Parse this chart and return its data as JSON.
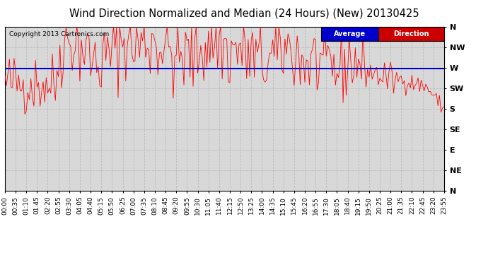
{
  "title": "Wind Direction Normalized and Median (24 Hours) (New) 20130425",
  "copyright": "Copyright 2013 Cartronics.com",
  "ytick_labels": [
    "N",
    "NW",
    "W",
    "SW",
    "S",
    "SE",
    "E",
    "NE",
    "N"
  ],
  "ytick_values": [
    360,
    315,
    270,
    225,
    180,
    135,
    90,
    45,
    0
  ],
  "ylim": [
    0,
    360
  ],
  "average_line_y": 268,
  "line_color": "#ff0000",
  "avg_line_color": "#0000cd",
  "grid_color": "#bbbbbb",
  "background_color": "#ffffff",
  "plot_bg_color": "#d8d8d8",
  "title_fontsize": 10.5,
  "copyright_fontsize": 6.5,
  "tick_fontsize": 6.5,
  "ytick_fontsize": 8,
  "legend_blue_color": "#0000cc",
  "legend_red_color": "#cc0000",
  "n_points": 288,
  "tick_step": 7
}
